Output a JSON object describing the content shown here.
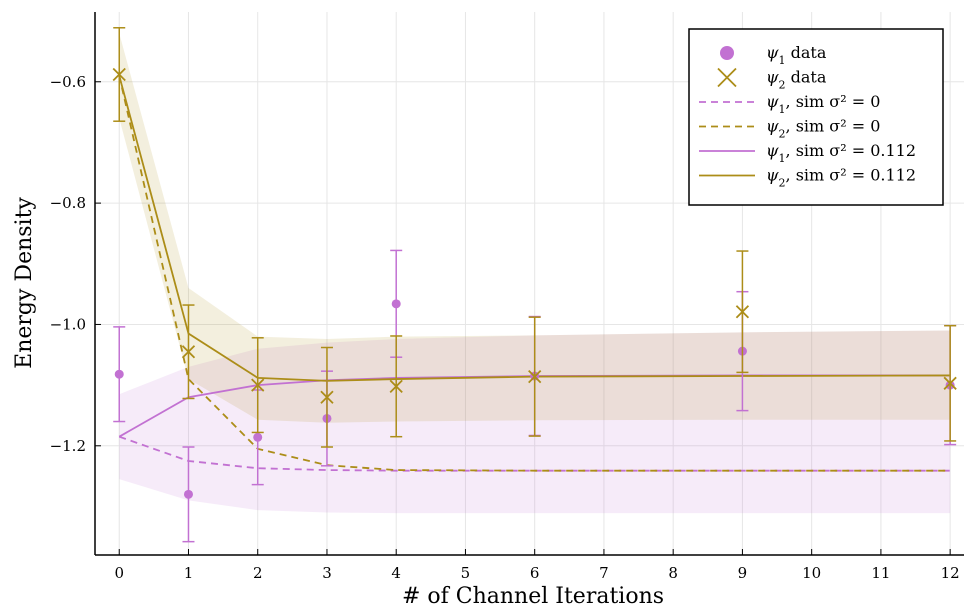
{
  "chart_data": {
    "type": "scatter",
    "xlabel": "# of Channel Iterations",
    "ylabel": "Energy Density",
    "xlim": [
      -0.35,
      12.2
    ],
    "ylim": [
      -1.38,
      -0.485
    ],
    "xticks": [
      0,
      1,
      2,
      3,
      4,
      5,
      6,
      7,
      8,
      9,
      10,
      11,
      12
    ],
    "xtick_labels": [
      "0",
      "1",
      "2",
      "3",
      "4",
      "5",
      "6",
      "7",
      "8",
      "9",
      "10",
      "11",
      "12"
    ],
    "yticks": [
      -1.2,
      -1.0,
      -0.8,
      -0.6
    ],
    "ytick_labels": [
      "−1.2",
      "−1.0",
      "−0.8",
      "−0.6"
    ],
    "grid": true,
    "legend_position": "top-right",
    "colors": {
      "psi1": "#c271d2",
      "psi2": "#ac8d18"
    },
    "series": [
      {
        "key": "psi1_data",
        "name": "ψ₁ data",
        "legend_symbol": "ψ",
        "legend_sub": "1",
        "legend_rest": " data",
        "kind": "points",
        "marker": "circle",
        "color": "#c271d2",
        "points": [
          {
            "x": 0,
            "y": -1.082,
            "err": 0.078
          },
          {
            "x": 1,
            "y": -1.28,
            "err": 0.078
          },
          {
            "x": 2,
            "y": -1.186,
            "err": 0.078
          },
          {
            "x": 3,
            "y": -1.155,
            "err": 0.078
          },
          {
            "x": 4,
            "y": -0.966,
            "err": 0.088
          },
          {
            "x": 6,
            "y": -1.085,
            "err": 0.098
          },
          {
            "x": 9,
            "y": -1.044,
            "err": 0.098
          },
          {
            "x": 12,
            "y": -1.1,
            "err": 0.098
          }
        ]
      },
      {
        "key": "psi2_data",
        "name": "ψ₂ data",
        "legend_symbol": "ψ",
        "legend_sub": "2",
        "legend_rest": " data",
        "kind": "points",
        "marker": "cross",
        "color": "#ac8d18",
        "points": [
          {
            "x": 0,
            "y": -0.588,
            "err": 0.077
          },
          {
            "x": 1,
            "y": -1.045,
            "err": 0.077
          },
          {
            "x": 2,
            "y": -1.1,
            "err": 0.078
          },
          {
            "x": 3,
            "y": -1.12,
            "err": 0.082
          },
          {
            "x": 4,
            "y": -1.102,
            "err": 0.083
          },
          {
            "x": 6,
            "y": -1.086,
            "err": 0.098
          },
          {
            "x": 9,
            "y": -0.979,
            "err": 0.1
          },
          {
            "x": 12,
            "y": -1.097,
            "err": 0.095
          }
        ]
      },
      {
        "key": "psi1_sim0",
        "name": "ψ₁, sim σ² = 0",
        "legend_symbol": "ψ",
        "legend_sub": "1",
        "legend_rest": ", sim σ² = 0",
        "kind": "line",
        "dash": true,
        "color": "#c271d2",
        "x": [
          0,
          1,
          2,
          3,
          4,
          6,
          9,
          12
        ],
        "y": [
          -1.185,
          -1.225,
          -1.237,
          -1.24,
          -1.241,
          -1.241,
          -1.241,
          -1.241
        ]
      },
      {
        "key": "psi2_sim0",
        "name": "ψ₂, sim σ² = 0",
        "legend_symbol": "ψ",
        "legend_sub": "2",
        "legend_rest": ", sim σ² = 0",
        "kind": "line",
        "dash": true,
        "color": "#ac8d18",
        "x": [
          0,
          1,
          2,
          3,
          4,
          6,
          9,
          12
        ],
        "y": [
          -0.59,
          -1.09,
          -1.205,
          -1.232,
          -1.24,
          -1.241,
          -1.241,
          -1.241
        ]
      },
      {
        "key": "psi1_sim",
        "name": "ψ₁, sim σ² = 0.112",
        "legend_symbol": "ψ",
        "legend_sub": "1",
        "legend_rest": ", sim σ² = 0.112",
        "kind": "line",
        "dash": false,
        "color": "#c271d2",
        "x": [
          0,
          1,
          2,
          3,
          4,
          6,
          9,
          12
        ],
        "y": [
          -1.185,
          -1.12,
          -1.1,
          -1.092,
          -1.088,
          -1.085,
          -1.084,
          -1.084
        ],
        "band_lower": [
          -1.255,
          -1.29,
          -1.306,
          -1.31,
          -1.311,
          -1.311,
          -1.311,
          -1.311
        ],
        "band_upper": [
          -1.115,
          -1.07,
          -1.04,
          -1.03,
          -1.024,
          -1.018,
          -1.013,
          -1.01
        ]
      },
      {
        "key": "psi2_sim",
        "name": "ψ₂, sim σ² = 0.112",
        "legend_symbol": "ψ",
        "legend_sub": "2",
        "legend_rest": ", sim σ² = 0.112",
        "kind": "line",
        "dash": false,
        "color": "#ac8d18",
        "x": [
          0,
          1,
          2,
          3,
          4,
          6,
          9,
          12
        ],
        "y": [
          -0.59,
          -1.015,
          -1.088,
          -1.093,
          -1.09,
          -1.086,
          -1.085,
          -1.084
        ],
        "band_lower": [
          -0.66,
          -1.09,
          -1.157,
          -1.162,
          -1.16,
          -1.158,
          -1.157,
          -1.157
        ],
        "band_upper": [
          -0.52,
          -0.94,
          -1.02,
          -1.024,
          -1.02,
          -1.018,
          -1.013,
          -1.01
        ]
      }
    ]
  }
}
